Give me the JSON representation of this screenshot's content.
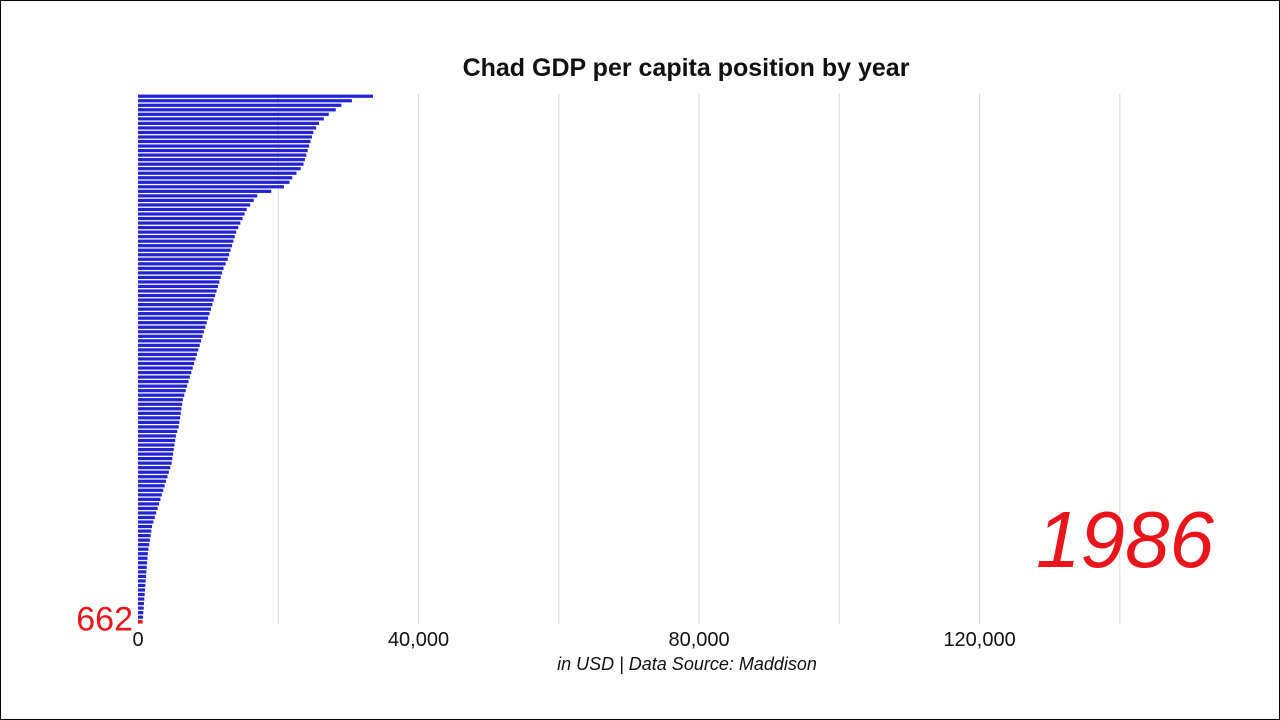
{
  "chart_data": {
    "type": "bar",
    "orientation": "horizontal",
    "title": "Chad GDP per capita position by year",
    "caption": "in USD | Data Source: Maddison",
    "year": "1986",
    "highlight": {
      "name": "Chad",
      "value": 662,
      "label": "662",
      "color": "#e8161c"
    },
    "bar_color": "#2323d4",
    "xlim": [
      0,
      150000
    ],
    "x_ticks": [
      {
        "value": 0,
        "label": "0"
      },
      {
        "value": 40000,
        "label": "40,000"
      },
      {
        "value": 80000,
        "label": "80,000"
      },
      {
        "value": 120000,
        "label": "120,000"
      }
    ],
    "gridlines": [
      20000,
      40000,
      60000,
      80000,
      100000,
      120000,
      140000
    ],
    "grid": true,
    "values": [
      33500,
      30500,
      29000,
      28200,
      27200,
      26500,
      25800,
      25400,
      25000,
      24800,
      24600,
      24400,
      24200,
      24000,
      23800,
      23600,
      23200,
      22600,
      22000,
      21600,
      20800,
      19000,
      17000,
      16500,
      16000,
      15500,
      15200,
      14900,
      14600,
      14300,
      14000,
      13800,
      13600,
      13400,
      13200,
      13000,
      12800,
      12500,
      12200,
      12000,
      11800,
      11600,
      11400,
      11200,
      11000,
      10800,
      10600,
      10400,
      10200,
      10000,
      9800,
      9600,
      9400,
      9200,
      9000,
      8800,
      8600,
      8400,
      8200,
      8000,
      7800,
      7600,
      7400,
      7200,
      7000,
      6800,
      6600,
      6400,
      6300,
      6200,
      6100,
      6000,
      5900,
      5800,
      5600,
      5400,
      5300,
      5200,
      5100,
      5000,
      4900,
      4800,
      4600,
      4400,
      4200,
      4000,
      3800,
      3600,
      3400,
      3200,
      3000,
      2800,
      2600,
      2400,
      2200,
      2000,
      1900,
      1800,
      1700,
      1600,
      1500,
      1400,
      1350,
      1300,
      1250,
      1200,
      1150,
      1100,
      1050,
      1000,
      950,
      900,
      850,
      800,
      750,
      700
    ]
  }
}
